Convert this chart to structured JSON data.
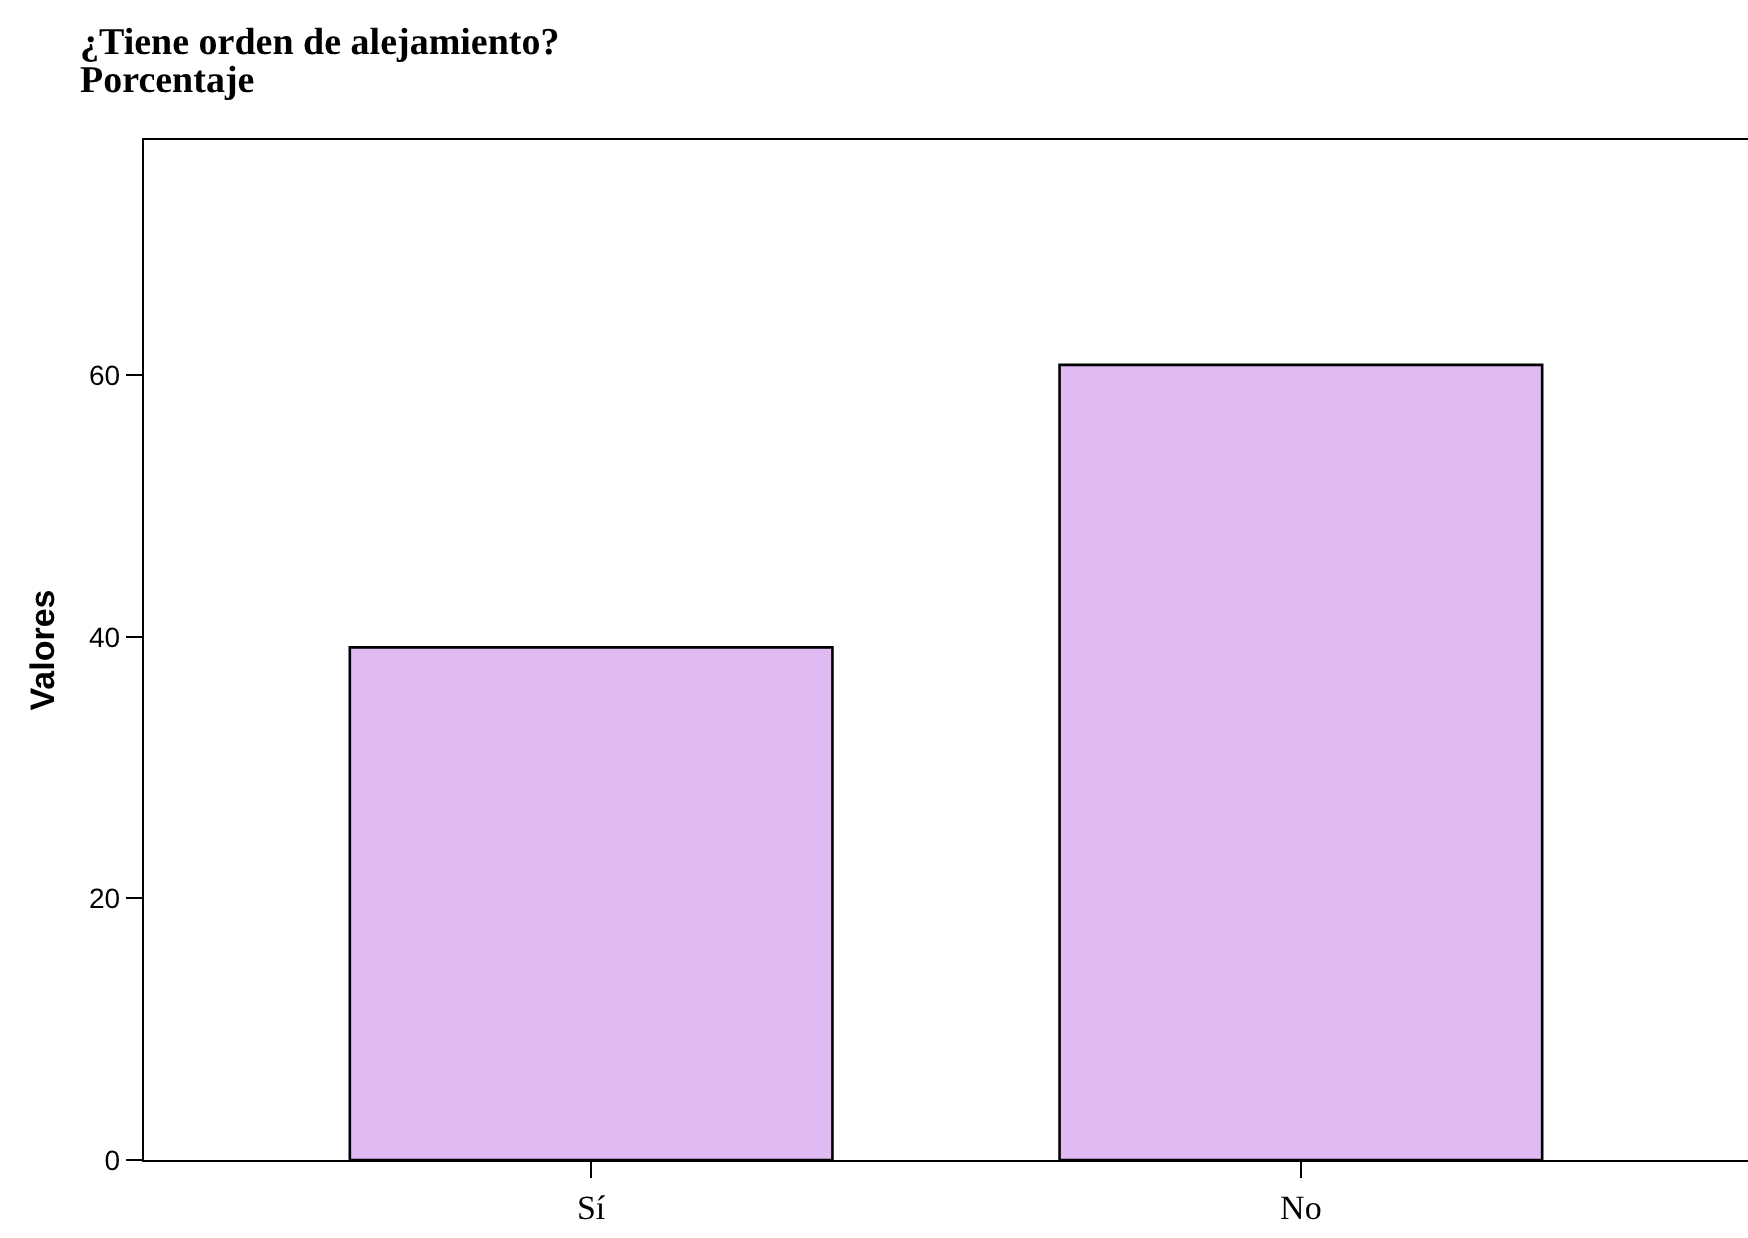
{
  "chart_data": {
    "type": "bar",
    "title": "¿Tiene orden de alejamiento?",
    "subtitle": "Porcentaje",
    "ylabel": "Valores",
    "categories": [
      "Sí",
      "No"
    ],
    "values": [
      39.2,
      60.8
    ],
    "color": "#dfbaf3",
    "ylim": [
      0,
      78
    ],
    "yticks": [
      0,
      20,
      40,
      60
    ],
    "grid": false,
    "legend": false
  }
}
